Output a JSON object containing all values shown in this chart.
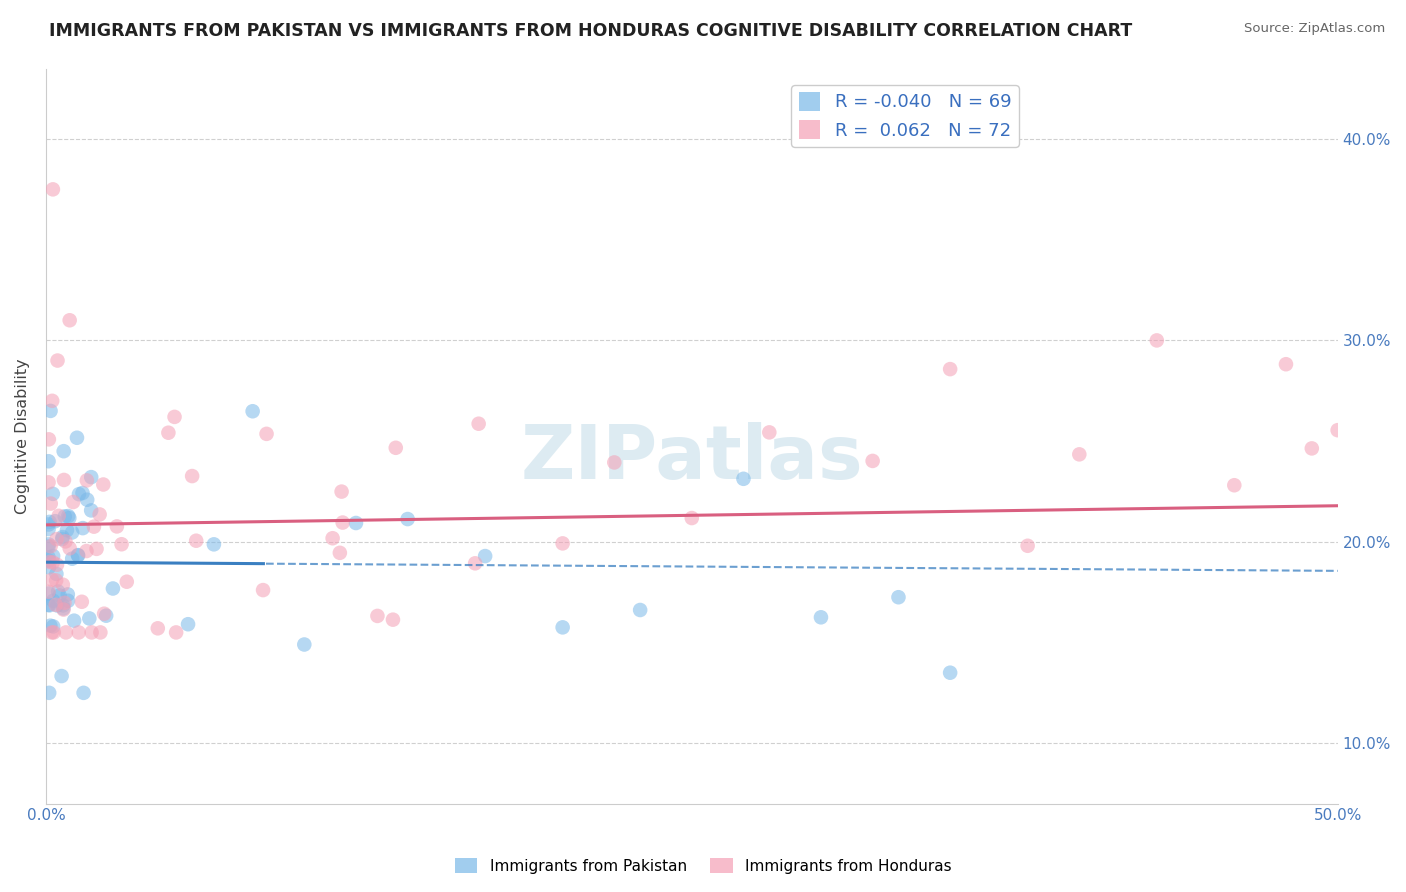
{
  "title": "IMMIGRANTS FROM PAKISTAN VS IMMIGRANTS FROM HONDURAS COGNITIVE DISABILITY CORRELATION CHART",
  "source": "Source: ZipAtlas.com",
  "ylabel": "Cognitive Disability",
  "xlim": [
    0.0,
    0.5
  ],
  "ylim": [
    0.07,
    0.435
  ],
  "pakistan_color": "#7ab8e8",
  "honduras_color": "#f4a0b5",
  "trend_pakistan_color": "#3a7fc1",
  "trend_honduras_color": "#d95f80",
  "watermark": "ZIPatlas",
  "legend_entries": [
    {
      "label": "Immigrants from Pakistan",
      "R": "-0.040",
      "N": "69",
      "color": "#7ab8e8"
    },
    {
      "label": "Immigrants from Honduras",
      "R": "0.062",
      "N": "72",
      "color": "#f4a0b5"
    }
  ]
}
